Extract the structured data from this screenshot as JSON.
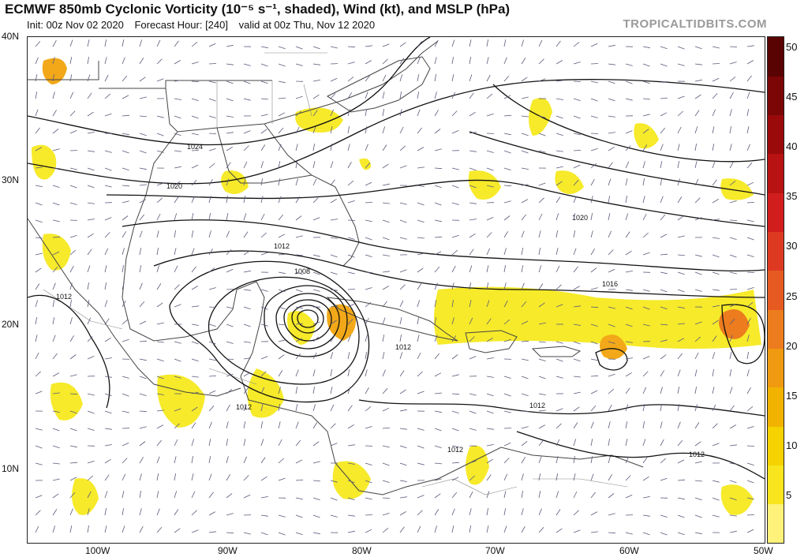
{
  "header": {
    "title": "ECMWF 850mb Cyclonic Vorticity (10⁻⁵ s⁻¹, shaded), Wind (kt), and MSLP (hPa)",
    "init": "Init: 00z Nov 02 2020",
    "forecast_hour": "Forecast Hour: [240]",
    "valid": "valid at 00z Thu, Nov 12 2020",
    "brand": "TROPICALTIDBITS.COM"
  },
  "axes": {
    "lat_labels": [
      "40N",
      "30N",
      "20N",
      "10N"
    ],
    "lon_labels": [
      "100W",
      "90W",
      "80W",
      "70W",
      "60W",
      "50W"
    ]
  },
  "isobar_labels": [
    "1024",
    "1020",
    "1020",
    "1016",
    "1012",
    "1012",
    "1012",
    "1012",
    "1012",
    "1012",
    "1012",
    "1008"
  ],
  "colorbar": {
    "ticks": [
      "50",
      "45",
      "40",
      "35",
      "30",
      "25",
      "20",
      "15",
      "10",
      "5"
    ],
    "colors": [
      "#fff27a",
      "#f8e51e",
      "#f5d200",
      "#f2b300",
      "#ef9a10",
      "#ec7c1e",
      "#e65a22",
      "#de3a22",
      "#d11d1d",
      "#b81212",
      "#9a0a0a",
      "#7a0606",
      "#5a0303"
    ]
  },
  "colors": {
    "land_line": "#444444",
    "isobar": "#111111",
    "wind_barb": "#5a5a7a",
    "vort_low": "#f6ea2a",
    "vort_mid": "#f2a818",
    "vort_high": "#e86a20"
  }
}
